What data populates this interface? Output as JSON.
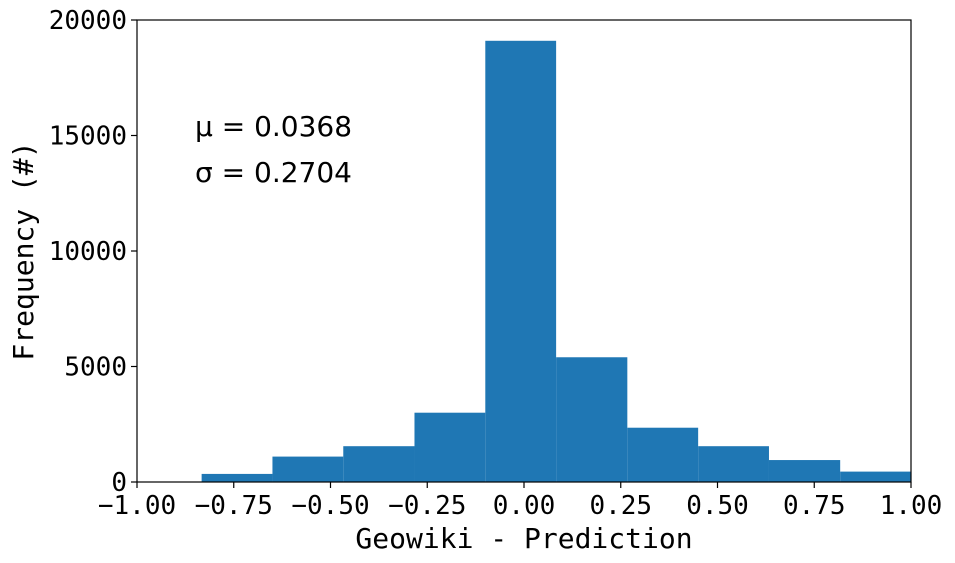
{
  "chart_data": {
    "type": "bar",
    "title": "",
    "xlabel": "Geowiki - Prediction",
    "ylabel": "Frequency (#)",
    "xlim": [
      -1.0,
      1.0
    ],
    "ylim": [
      0,
      20000
    ],
    "grid": false,
    "bar_color": "#1f77b4",
    "bins": [
      {
        "x0": -0.833,
        "x1": -0.65,
        "value": 350
      },
      {
        "x0": -0.65,
        "x1": -0.467,
        "value": 1100
      },
      {
        "x0": -0.467,
        "x1": -0.283,
        "value": 1550
      },
      {
        "x0": -0.283,
        "x1": -0.1,
        "value": 3000
      },
      {
        "x0": -0.1,
        "x1": 0.083,
        "value": 19100
      },
      {
        "x0": 0.083,
        "x1": 0.267,
        "value": 5400
      },
      {
        "x0": 0.267,
        "x1": 0.45,
        "value": 2350
      },
      {
        "x0": 0.45,
        "x1": 0.633,
        "value": 1550
      },
      {
        "x0": 0.633,
        "x1": 0.817,
        "value": 950
      },
      {
        "x0": 0.817,
        "x1": 1.0,
        "value": 450
      }
    ],
    "x_ticks": [
      {
        "value": -1.0,
        "label": "−1.00"
      },
      {
        "value": -0.75,
        "label": "−0.75"
      },
      {
        "value": -0.5,
        "label": "−0.50"
      },
      {
        "value": -0.25,
        "label": "−0.25"
      },
      {
        "value": 0.0,
        "label": "0.00"
      },
      {
        "value": 0.25,
        "label": "0.25"
      },
      {
        "value": 0.5,
        "label": "0.50"
      },
      {
        "value": 0.75,
        "label": "0.75"
      },
      {
        "value": 1.0,
        "label": "1.00"
      }
    ],
    "y_ticks": [
      {
        "value": 0,
        "label": "0"
      },
      {
        "value": 5000,
        "label": "5000"
      },
      {
        "value": 10000,
        "label": "10000"
      },
      {
        "value": 15000,
        "label": "15000"
      },
      {
        "value": 20000,
        "label": "20000"
      }
    ],
    "annotations": {
      "mu": "μ = 0.0368",
      "sigma": "σ = 0.2704"
    }
  }
}
